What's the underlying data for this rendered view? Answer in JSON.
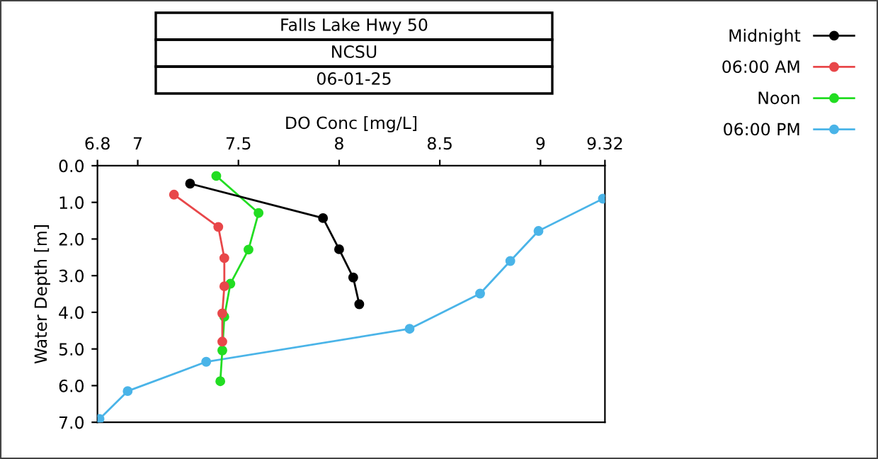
{
  "chart_data": {
    "type": "line",
    "title": "Falls Lake Hwy 50",
    "subtitle": "NCSU",
    "annotations": [
      "06-01-25"
    ],
    "xlabel": "DO Conc [mg/L]",
    "ylabel": "Water Depth [m]",
    "xlim": [
      6.8,
      9.32
    ],
    "xticks": [
      6.8,
      7,
      7.5,
      8,
      8.5,
      9,
      9.32
    ],
    "ylim": [
      7,
      0
    ],
    "yticks": [
      {
        "value": 0,
        "label": "0.0"
      },
      {
        "value": 1,
        "label": "1.0"
      },
      {
        "value": 2,
        "label": "2.0"
      },
      {
        "value": 3,
        "label": "3.0"
      },
      {
        "value": 4,
        "label": "4.0"
      },
      {
        "value": 5,
        "label": "5.0"
      },
      {
        "value": 6,
        "label": "6.0"
      },
      {
        "value": 7,
        "label": "7.0"
      }
    ],
    "grid": false,
    "legend": "top right",
    "marker": "circle",
    "line_style": "solid",
    "series": [
      {
        "name": "Midnight",
        "color": "#000000",
        "x": [
          7.26,
          7.92,
          8.0,
          8.07,
          8.1
        ],
        "values": [
          0.49,
          1.43,
          2.28,
          3.05,
          3.78
        ]
      },
      {
        "name": "06:00 AM",
        "color": "#e8474a",
        "x": [
          7.18,
          7.4,
          7.43,
          7.43,
          7.42,
          7.42
        ],
        "values": [
          0.79,
          1.67,
          2.52,
          3.29,
          4.03,
          4.8
        ]
      },
      {
        "name": "Noon",
        "color": "#22dd22",
        "x": [
          7.39,
          7.6,
          7.55,
          7.46,
          7.43,
          7.42,
          7.41
        ],
        "values": [
          0.28,
          1.29,
          2.29,
          3.22,
          4.12,
          5.04,
          5.88
        ]
      },
      {
        "name": "06:00 PM",
        "color": "#4ab4e8",
        "x": [
          9.31,
          8.99,
          8.85,
          8.7,
          8.35,
          7.34,
          6.95,
          6.81
        ],
        "values": [
          0.9,
          1.78,
          2.6,
          3.49,
          4.45,
          5.35,
          6.15,
          6.91
        ]
      }
    ]
  }
}
